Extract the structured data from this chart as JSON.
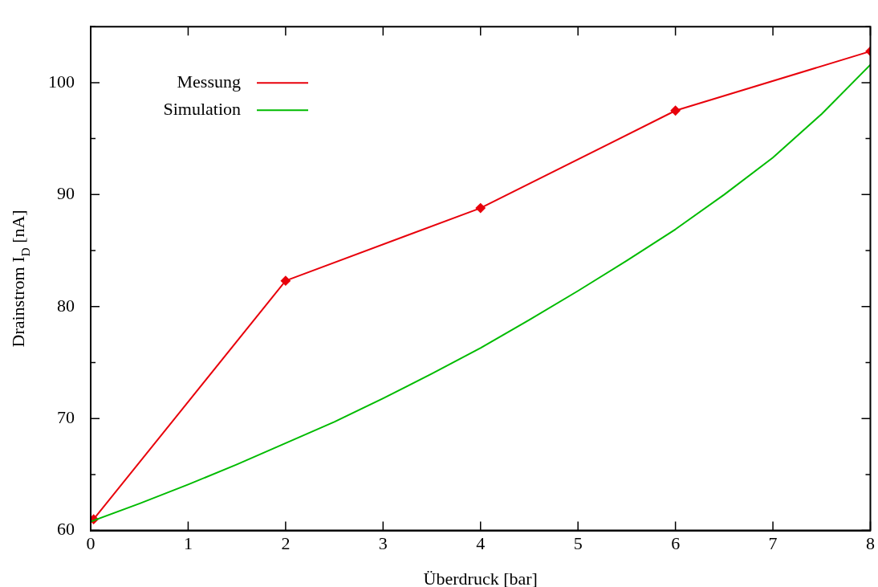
{
  "chart_data": {
    "type": "line",
    "xlabel": "Überdruck [bar]",
    "ylabel": "Drainstrom I$_{D}$ [nA]",
    "xlim": [
      0,
      8
    ],
    "xticks": [
      0,
      1,
      2,
      3,
      4,
      5,
      6,
      7,
      8
    ],
    "ylim": [
      60,
      105
    ],
    "yticks": [
      60,
      {
        "value": 65,
        "label": null
      },
      70,
      {
        "value": 75,
        "label": null
      },
      80,
      {
        "value": 85,
        "label": null
      },
      90,
      {
        "value": 95,
        "label": null
      },
      100,
      {
        "value": 105,
        "label": null
      }
    ],
    "grid": false,
    "legend": "top left",
    "line_style": "solid",
    "series": [
      {
        "name": "Messung",
        "color": "#e8000b",
        "marker": "diamond",
        "x": [
          0.03,
          2,
          4,
          6,
          8
        ],
        "values": [
          61.0,
          82.3,
          88.8,
          97.5,
          102.8
        ]
      },
      {
        "name": "Simulation",
        "color": "#00bb00",
        "marker": "none",
        "x": [
          0,
          0.5,
          1,
          1.5,
          2,
          2.5,
          3,
          3.5,
          4,
          4.5,
          5,
          5.5,
          6,
          6.5,
          7,
          7.5,
          8
        ],
        "values": [
          60.8,
          62.4,
          64.1,
          65.9,
          67.8,
          69.7,
          71.8,
          74.0,
          76.3,
          78.8,
          81.4,
          84.1,
          86.9,
          90.0,
          93.3,
          97.2,
          101.6
        ]
      }
    ]
  }
}
